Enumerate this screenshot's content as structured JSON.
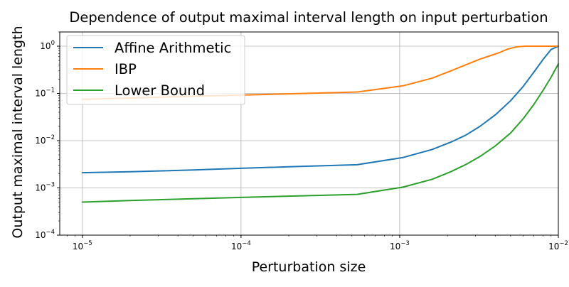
{
  "chart_data": {
    "type": "line",
    "title": "Dependence of output maximal interval length on input perturbation",
    "xlabel": "Perturbation size",
    "ylabel": "Output maximal interval length",
    "xscale": "log",
    "yscale": "log",
    "xlim": [
      7.2e-06,
      0.01
    ],
    "ylim": [
      0.0001,
      2.0
    ],
    "grid": true,
    "legend_position": "top-left",
    "x_ticks": [
      {
        "value": 1e-05,
        "base": "10",
        "exp": "−5"
      },
      {
        "value": 0.0001,
        "base": "10",
        "exp": "−4"
      },
      {
        "value": 0.001,
        "base": "10",
        "exp": "−3"
      },
      {
        "value": 0.01,
        "base": "10",
        "exp": "−2"
      }
    ],
    "y_ticks": [
      {
        "value": 0.0001,
        "base": "10",
        "exp": "−4"
      },
      {
        "value": 0.001,
        "base": "10",
        "exp": "−3"
      },
      {
        "value": 0.01,
        "base": "10",
        "exp": "−2"
      },
      {
        "value": 0.1,
        "base": "10",
        "exp": "−1"
      },
      {
        "value": 1,
        "base": "10",
        "exp": "0"
      }
    ],
    "series": [
      {
        "name": "Affine Arithmetic",
        "color": "#1f77b4",
        "x": [
          1e-05,
          2e-05,
          5e-05,
          0.0001,
          0.0002,
          0.00054,
          0.00105,
          0.0016,
          0.0021,
          0.0026,
          0.0032,
          0.004,
          0.005,
          0.006,
          0.007,
          0.008,
          0.009,
          0.01
        ],
        "y": [
          0.0021,
          0.0022,
          0.0024,
          0.0026,
          0.0028,
          0.0031,
          0.0044,
          0.0065,
          0.0093,
          0.013,
          0.02,
          0.035,
          0.07,
          0.14,
          0.28,
          0.52,
          0.85,
          1.0
        ]
      },
      {
        "name": "IBP",
        "color": "#ff7f0e",
        "x": [
          1e-05,
          2e-05,
          5e-05,
          0.0001,
          0.0002,
          0.00054,
          0.00105,
          0.0016,
          0.0021,
          0.0026,
          0.0032,
          0.0042,
          0.0048,
          0.0055,
          0.0062,
          0.007,
          0.008,
          0.01
        ],
        "y": [
          0.075,
          0.08,
          0.087,
          0.092,
          0.098,
          0.107,
          0.145,
          0.21,
          0.3,
          0.4,
          0.53,
          0.72,
          0.87,
          0.97,
          1.0,
          1.0,
          1.0,
          1.0
        ]
      },
      {
        "name": "Lower Bound",
        "color": "#2ca02c",
        "x": [
          1e-05,
          2e-05,
          5e-05,
          0.0001,
          0.0002,
          0.00054,
          0.00105,
          0.0016,
          0.0021,
          0.0026,
          0.0032,
          0.004,
          0.005,
          0.006,
          0.007,
          0.008,
          0.009,
          0.01
        ],
        "y": [
          0.0005,
          0.00054,
          0.00059,
          0.00063,
          0.00067,
          0.00073,
          0.00104,
          0.00152,
          0.0022,
          0.0031,
          0.0046,
          0.0077,
          0.0145,
          0.029,
          0.058,
          0.115,
          0.22,
          0.42
        ]
      }
    ]
  }
}
